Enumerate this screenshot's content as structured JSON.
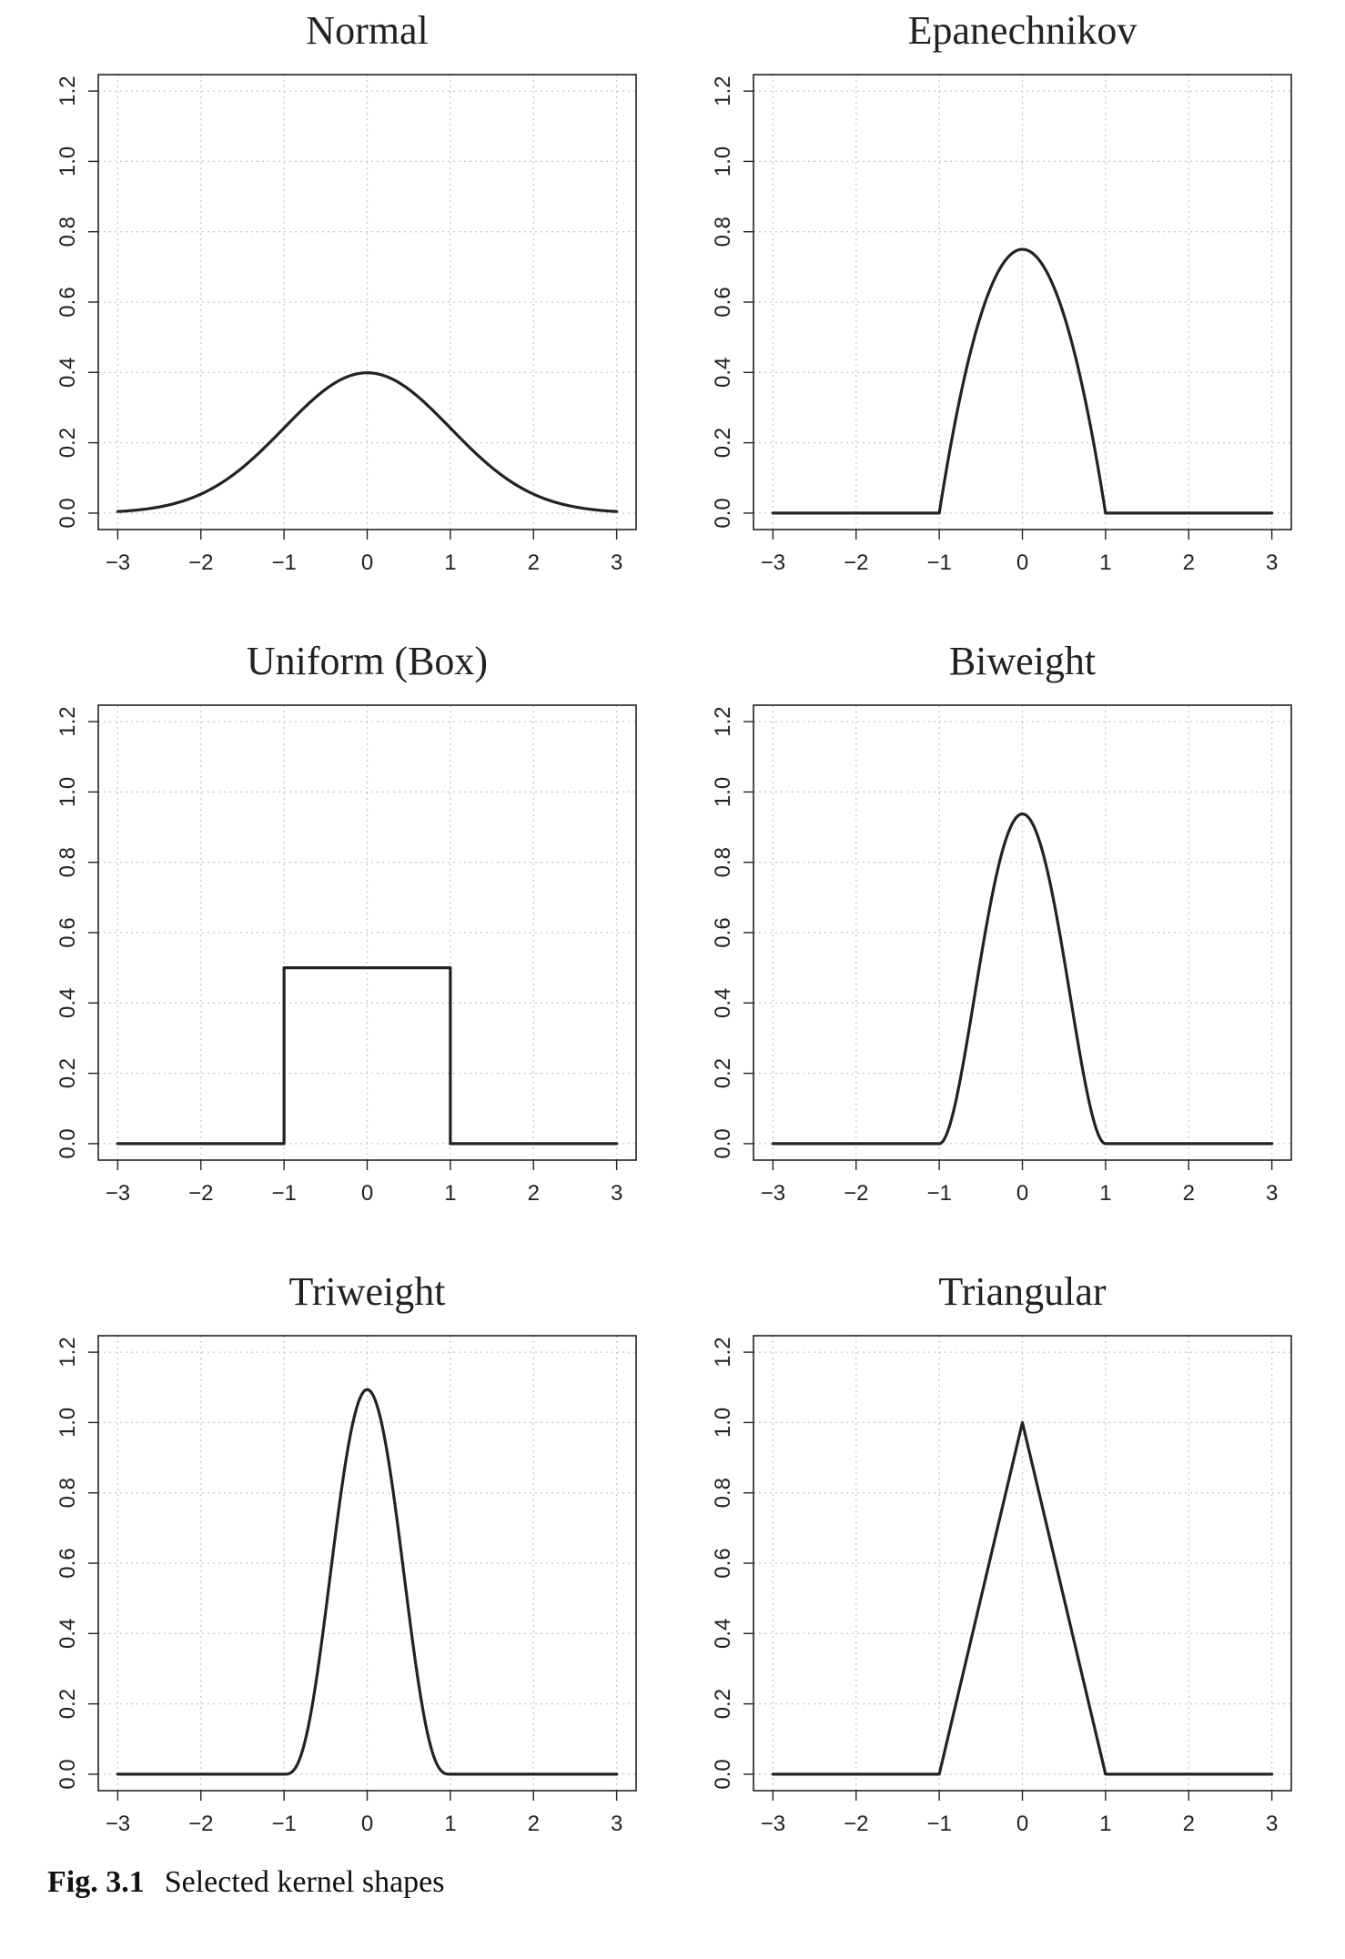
{
  "caption": {
    "label": "Fig. 3.1",
    "text": "Selected kernel shapes"
  },
  "chart_data": [
    {
      "type": "line",
      "title": "Normal",
      "kernel": "normal",
      "xlim": [
        -3,
        3
      ],
      "ylim": [
        0,
        1.2
      ],
      "x_ticks": [
        -3,
        -2,
        -1,
        0,
        1,
        2,
        3
      ],
      "y_ticks": [
        0.0,
        0.2,
        0.4,
        0.6,
        0.8,
        1.0,
        1.2
      ],
      "grid": true,
      "series": [
        {
          "x": [
            -3,
            -2.5,
            -2,
            -1.5,
            -1,
            -0.5,
            0,
            0.5,
            1,
            1.5,
            2,
            2.5,
            3
          ],
          "y": [
            0.004,
            0.018,
            0.054,
            0.13,
            0.242,
            0.352,
            0.399,
            0.352,
            0.242,
            0.13,
            0.054,
            0.018,
            0.004
          ]
        }
      ]
    },
    {
      "type": "line",
      "title": "Epanechnikov",
      "kernel": "epanechnikov",
      "xlim": [
        -3,
        3
      ],
      "ylim": [
        0,
        1.2
      ],
      "x_ticks": [
        -3,
        -2,
        -1,
        0,
        1,
        2,
        3
      ],
      "y_ticks": [
        0.0,
        0.2,
        0.4,
        0.6,
        0.8,
        1.0,
        1.2
      ],
      "grid": true,
      "series": [
        {
          "x": [
            -3,
            -1,
            -0.75,
            -0.5,
            -0.25,
            0,
            0.25,
            0.5,
            0.75,
            1,
            3
          ],
          "y": [
            0,
            0,
            0.328,
            0.563,
            0.703,
            0.75,
            0.703,
            0.563,
            0.328,
            0,
            0
          ]
        }
      ]
    },
    {
      "type": "line",
      "title": "Uniform (Box)",
      "kernel": "uniform",
      "xlim": [
        -3,
        3
      ],
      "ylim": [
        0,
        1.2
      ],
      "x_ticks": [
        -3,
        -2,
        -1,
        0,
        1,
        2,
        3
      ],
      "y_ticks": [
        0.0,
        0.2,
        0.4,
        0.6,
        0.8,
        1.0,
        1.2
      ],
      "grid": true,
      "series": [
        {
          "x": [
            -3,
            -1,
            -1,
            1,
            1,
            3
          ],
          "y": [
            0,
            0,
            0.5,
            0.5,
            0,
            0
          ]
        }
      ]
    },
    {
      "type": "line",
      "title": "Biweight",
      "kernel": "biweight",
      "xlim": [
        -3,
        3
      ],
      "ylim": [
        0,
        1.2
      ],
      "x_ticks": [
        -3,
        -2,
        -1,
        0,
        1,
        2,
        3
      ],
      "y_ticks": [
        0.0,
        0.2,
        0.4,
        0.6,
        0.8,
        1.0,
        1.2
      ],
      "grid": true,
      "series": [
        {
          "x": [
            -3,
            -1,
            -0.75,
            -0.5,
            -0.25,
            0,
            0.25,
            0.5,
            0.75,
            1,
            3
          ],
          "y": [
            0,
            0,
            0.179,
            0.527,
            0.824,
            0.9375,
            0.824,
            0.527,
            0.179,
            0,
            0
          ]
        }
      ]
    },
    {
      "type": "line",
      "title": "Triweight",
      "kernel": "triweight",
      "xlim": [
        -3,
        3
      ],
      "ylim": [
        0,
        1.2
      ],
      "x_ticks": [
        -3,
        -2,
        -1,
        0,
        1,
        2,
        3
      ],
      "y_ticks": [
        0.0,
        0.2,
        0.4,
        0.6,
        0.8,
        1.0,
        1.2
      ],
      "grid": true,
      "series": [
        {
          "x": [
            -3,
            -1,
            -0.75,
            -0.5,
            -0.25,
            0,
            0.25,
            0.5,
            0.75,
            1,
            3
          ],
          "y": [
            0,
            0,
            0.092,
            0.462,
            0.902,
            1.094,
            0.902,
            0.462,
            0.092,
            0,
            0
          ]
        }
      ]
    },
    {
      "type": "line",
      "title": "Triangular",
      "kernel": "triangular",
      "xlim": [
        -3,
        3
      ],
      "ylim": [
        0,
        1.2
      ],
      "x_ticks": [
        -3,
        -2,
        -1,
        0,
        1,
        2,
        3
      ],
      "y_ticks": [
        0.0,
        0.2,
        0.4,
        0.6,
        0.8,
        1.0,
        1.2
      ],
      "grid": true,
      "series": [
        {
          "x": [
            -3,
            -1,
            0,
            1,
            3
          ],
          "y": [
            0,
            0,
            1,
            0,
            0
          ]
        }
      ]
    }
  ]
}
